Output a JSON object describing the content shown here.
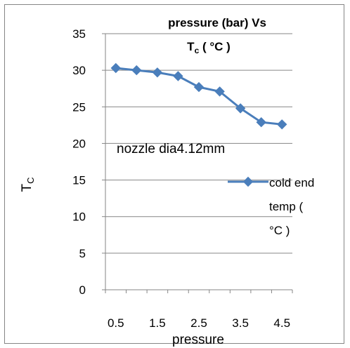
{
  "chart_data": {
    "type": "line",
    "title_line1": "pressure (bar) Vs",
    "title_line2_main": "T",
    "title_line2_sub": "c",
    "title_line2_rest": " ( °C  )",
    "xlabel": "pressure",
    "ylabel_main": "T",
    "ylabel_sub": "C",
    "annotation": "nozzle dia4.12mm",
    "legend_lines": [
      "cold end",
      "temp (",
      "°C  )"
    ],
    "legend_position": "right",
    "ylim": [
      0,
      35
    ],
    "y_ticks": [
      "0",
      "5",
      "10",
      "15",
      "20",
      "25",
      "30",
      "35"
    ],
    "x_ticks": [
      "0.5",
      "1.5",
      "2.5",
      "3.5",
      "4.5"
    ],
    "grid": "horizontal",
    "series": [
      {
        "name": "cold end temp ( °C  )",
        "color": "#4a7ebb",
        "marker": "diamond",
        "x": [
          0.5,
          1,
          1.5,
          2,
          2.5,
          3,
          3.5,
          4,
          4.5
        ],
        "values": [
          30.3,
          30.0,
          29.7,
          29.2,
          27.7,
          27.1,
          24.8,
          22.9,
          22.6
        ]
      }
    ]
  }
}
